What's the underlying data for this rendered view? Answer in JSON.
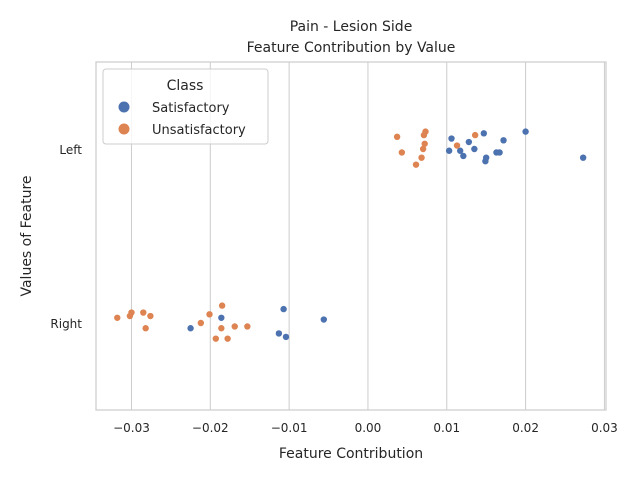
{
  "chart_data": {
    "type": "scatter",
    "title": "Pain - Lesion Side",
    "subtitle": "Feature Contribution by Value",
    "xlabel": "Feature Contribution",
    "ylabel": "Values of Feature",
    "xlim": [
      -0.0345,
      0.0302
    ],
    "x_ticks": [
      -0.03,
      -0.02,
      -0.01,
      0.0,
      0.01,
      0.02,
      0.03
    ],
    "x_tick_labels": [
      "−0.03",
      "−0.02",
      "−0.01",
      "0.00",
      "0.01",
      "0.02",
      "0.03"
    ],
    "categories": [
      "Left",
      "Right"
    ],
    "grid": "vertical",
    "legend": {
      "title": "Class",
      "placement": "top-left",
      "entries": [
        "Satisfactory",
        "Unsatisfactory"
      ]
    },
    "series": [
      {
        "name": "Satisfactory",
        "color": "#4c72b0",
        "points": [
          {
            "x": 0.02,
            "cat": "Left",
            "j": 0.1
          },
          {
            "x": 0.0147,
            "cat": "Left",
            "j": 0.09
          },
          {
            "x": 0.0106,
            "cat": "Left",
            "j": 0.06
          },
          {
            "x": 0.0128,
            "cat": "Left",
            "j": 0.04
          },
          {
            "x": 0.0172,
            "cat": "Left",
            "j": 0.05
          },
          {
            "x": 0.0135,
            "cat": "Left",
            "j": 0.0
          },
          {
            "x": 0.0103,
            "cat": "Left",
            "j": -0.01
          },
          {
            "x": 0.0117,
            "cat": "Left",
            "j": -0.01
          },
          {
            "x": 0.0163,
            "cat": "Left",
            "j": -0.02
          },
          {
            "x": 0.0167,
            "cat": "Left",
            "j": -0.02
          },
          {
            "x": 0.0121,
            "cat": "Left",
            "j": -0.04
          },
          {
            "x": 0.015,
            "cat": "Left",
            "j": -0.05
          },
          {
            "x": 0.0149,
            "cat": "Left",
            "j": -0.07
          },
          {
            "x": 0.0273,
            "cat": "Left",
            "j": -0.05
          },
          {
            "x": -0.0107,
            "cat": "Right",
            "j": 0.08
          },
          {
            "x": -0.0186,
            "cat": "Right",
            "j": 0.03
          },
          {
            "x": -0.0056,
            "cat": "Right",
            "j": 0.02
          },
          {
            "x": -0.0225,
            "cat": "Right",
            "j": -0.03
          },
          {
            "x": -0.0113,
            "cat": "Right",
            "j": -0.06
          },
          {
            "x": -0.0104,
            "cat": "Right",
            "j": -0.08
          }
        ]
      },
      {
        "name": "Unsatisfactory",
        "color": "#dd8452",
        "points": [
          {
            "x": 0.0073,
            "cat": "Left",
            "j": 0.1
          },
          {
            "x": 0.0071,
            "cat": "Left",
            "j": 0.08
          },
          {
            "x": 0.0136,
            "cat": "Left",
            "j": 0.08
          },
          {
            "x": 0.0037,
            "cat": "Left",
            "j": 0.07
          },
          {
            "x": 0.0072,
            "cat": "Left",
            "j": 0.03
          },
          {
            "x": 0.0113,
            "cat": "Left",
            "j": 0.02
          },
          {
            "x": 0.007,
            "cat": "Left",
            "j": 0.0
          },
          {
            "x": 0.0043,
            "cat": "Left",
            "j": -0.02
          },
          {
            "x": 0.0068,
            "cat": "Left",
            "j": -0.05
          },
          {
            "x": 0.0061,
            "cat": "Left",
            "j": -0.09
          },
          {
            "x": -0.0185,
            "cat": "Right",
            "j": 0.1
          },
          {
            "x": -0.03,
            "cat": "Right",
            "j": 0.06
          },
          {
            "x": -0.0285,
            "cat": "Right",
            "j": 0.06
          },
          {
            "x": -0.0201,
            "cat": "Right",
            "j": 0.05
          },
          {
            "x": -0.0318,
            "cat": "Right",
            "j": 0.03
          },
          {
            "x": -0.0302,
            "cat": "Right",
            "j": 0.04
          },
          {
            "x": -0.0276,
            "cat": "Right",
            "j": 0.04
          },
          {
            "x": -0.0212,
            "cat": "Right",
            "j": 0.0
          },
          {
            "x": -0.0282,
            "cat": "Right",
            "j": -0.03
          },
          {
            "x": -0.0169,
            "cat": "Right",
            "j": -0.02
          },
          {
            "x": -0.0153,
            "cat": "Right",
            "j": -0.02
          },
          {
            "x": -0.0186,
            "cat": "Right",
            "j": -0.03
          },
          {
            "x": -0.0193,
            "cat": "Right",
            "j": -0.09
          },
          {
            "x": -0.0178,
            "cat": "Right",
            "j": -0.09
          }
        ]
      }
    ]
  }
}
